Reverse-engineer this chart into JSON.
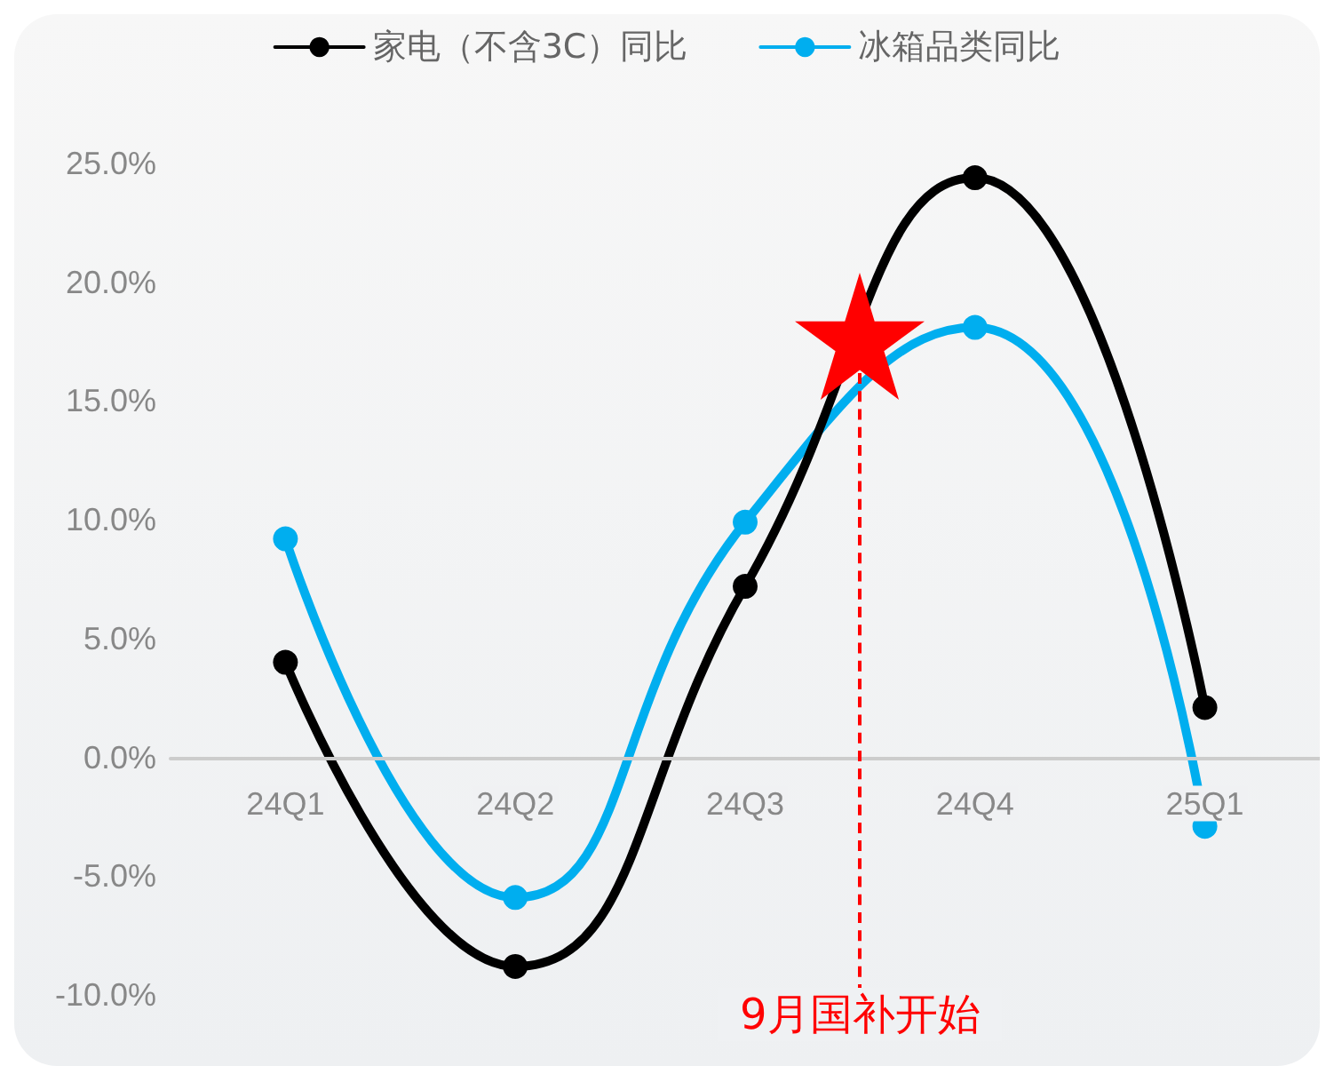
{
  "chart_data": {
    "type": "line",
    "categories": [
      "24Q1",
      "24Q2",
      "24Q3",
      "24Q4",
      "25Q1"
    ],
    "series": [
      {
        "name": "家电（不含3C）同比",
        "color": "#000000",
        "values": [
          4.0,
          -8.8,
          7.2,
          24.4,
          2.1
        ]
      },
      {
        "name": "冰箱品类同比",
        "color": "#00aeef",
        "values": [
          9.2,
          -5.9,
          9.9,
          18.1,
          -2.9
        ]
      }
    ],
    "ylim": [
      -10,
      25
    ],
    "yticks": [
      {
        "value": -10,
        "label": "-10.0%"
      },
      {
        "value": -5,
        "label": "-5.0%"
      },
      {
        "value": 0,
        "label": "0.0%"
      },
      {
        "value": 5,
        "label": "5.0%"
      },
      {
        "value": 10,
        "label": "10.0%"
      },
      {
        "value": 15,
        "label": "15.0%"
      },
      {
        "value": 20,
        "label": "20.0%"
      },
      {
        "value": 25,
        "label": "25.0%"
      }
    ],
    "annotations": [
      "9月国补开始"
    ],
    "grid": false,
    "legend": "top",
    "marker": "circle"
  }
}
